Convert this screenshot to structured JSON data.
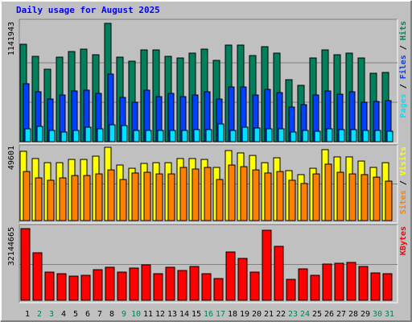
{
  "title": "Daily usage for August 2025",
  "chart_data": [
    {
      "type": "bar",
      "ylim": [
        0,
        1141943
      ],
      "yticks": [
        1141943
      ],
      "legend_separator": "/",
      "series": [
        {
          "name": "Hits",
          "color": "#00805c",
          "values": [
            940000,
            823400,
            699100,
            815700,
            870000,
            893300,
            839000,
            1141943,
            815700,
            776800,
            885600,
            885600,
            823400,
            807900,
            854500,
            893300,
            784600,
            932200,
            932200,
            831200,
            916700,
            854500,
            598100,
            543800,
            807900,
            885600,
            839000,
            854500,
            807900,
            660300,
            668100
          ]
        },
        {
          "name": "Files",
          "color": "#0040ff",
          "values": [
            559300,
            481600,
            411700,
            450500,
            489400,
            497200,
            466100,
            652500,
            427200,
            380600,
            497200,
            435000,
            466100,
            435000,
            450500,
            481600,
            411700,
            528200,
            528200,
            450500,
            504900,
            473800,
            334000,
            357300,
            450500,
            489400,
            458300,
            481600,
            380600,
            388400,
            396200
          ]
        },
        {
          "name": "Pages",
          "color": "#00e0ff",
          "values": [
            124300,
            147600,
            108800,
            93200,
            108800,
            139800,
            124300,
            163100,
            155400,
            108800,
            108800,
            108800,
            108800,
            108800,
            116500,
            116500,
            170900,
            108800,
            139800,
            132100,
            124300,
            124300,
            93200,
            108800,
            101000,
            124300,
            116500,
            116500,
            108800,
            108800,
            101000
          ]
        }
      ]
    },
    {
      "type": "bar",
      "ylim": [
        0,
        49601
      ],
      "yticks": [
        49601
      ],
      "legend_separator": "/",
      "series": [
        {
          "name": "Visits",
          "color": "#ffff00",
          "values": [
            46900,
            42000,
            39200,
            39200,
            41400,
            41400,
            43600,
            49601,
            37600,
            35400,
            38700,
            39200,
            39200,
            42000,
            42000,
            41400,
            36000,
            47400,
            45800,
            44100,
            39200,
            42500,
            33800,
            31100,
            35400,
            48000,
            43100,
            43100,
            40300,
            36000,
            39200
          ]
        },
        {
          "name": "Sites",
          "color": "#ff8000",
          "values": [
            33200,
            28900,
            27300,
            28900,
            30500,
            30500,
            31600,
            34300,
            27800,
            32200,
            32700,
            31600,
            31600,
            36000,
            34900,
            36000,
            27800,
            37600,
            36500,
            34300,
            32200,
            33200,
            27300,
            25100,
            31600,
            38200,
            32700,
            31600,
            31100,
            29400,
            26700
          ]
        }
      ]
    },
    {
      "type": "bar",
      "ylim": [
        0,
        32144665
      ],
      "yticks": [
        32144665
      ],
      "categories": [
        "1",
        "2",
        "3",
        "4",
        "5",
        "6",
        "7",
        "8",
        "9",
        "10",
        "11",
        "12",
        "13",
        "14",
        "15",
        "16",
        "17",
        "18",
        "19",
        "20",
        "21",
        "22",
        "23",
        "24",
        "25",
        "26",
        "27",
        "28",
        "29",
        "30",
        "31"
      ],
      "category_colors": [
        "#000000",
        "#00805c",
        "#00805c",
        "#000000",
        "#000000",
        "#000000",
        "#000000",
        "#000000",
        "#00805c",
        "#00805c",
        "#000000",
        "#000000",
        "#000000",
        "#000000",
        "#000000",
        "#00805c",
        "#00805c",
        "#000000",
        "#000000",
        "#000000",
        "#000000",
        "#000000",
        "#00805c",
        "#00805c",
        "#000000",
        "#000000",
        "#000000",
        "#000000",
        "#000000",
        "#00805c",
        "#00805c"
      ],
      "series": [
        {
          "name": "KBytes",
          "color": "#ff0000",
          "values": [
            32144665,
            21310000,
            12640000,
            11920000,
            10840000,
            11200000,
            13720000,
            14810000,
            12640000,
            14450000,
            15890000,
            11920000,
            14810000,
            13360000,
            15170000,
            11920000,
            9750000,
            21670000,
            18780000,
            12640000,
            31420000,
            24200000,
            9390000,
            14090000,
            11200000,
            16250000,
            16610000,
            16980000,
            15170000,
            12280000,
            11920000
          ]
        }
      ]
    }
  ]
}
